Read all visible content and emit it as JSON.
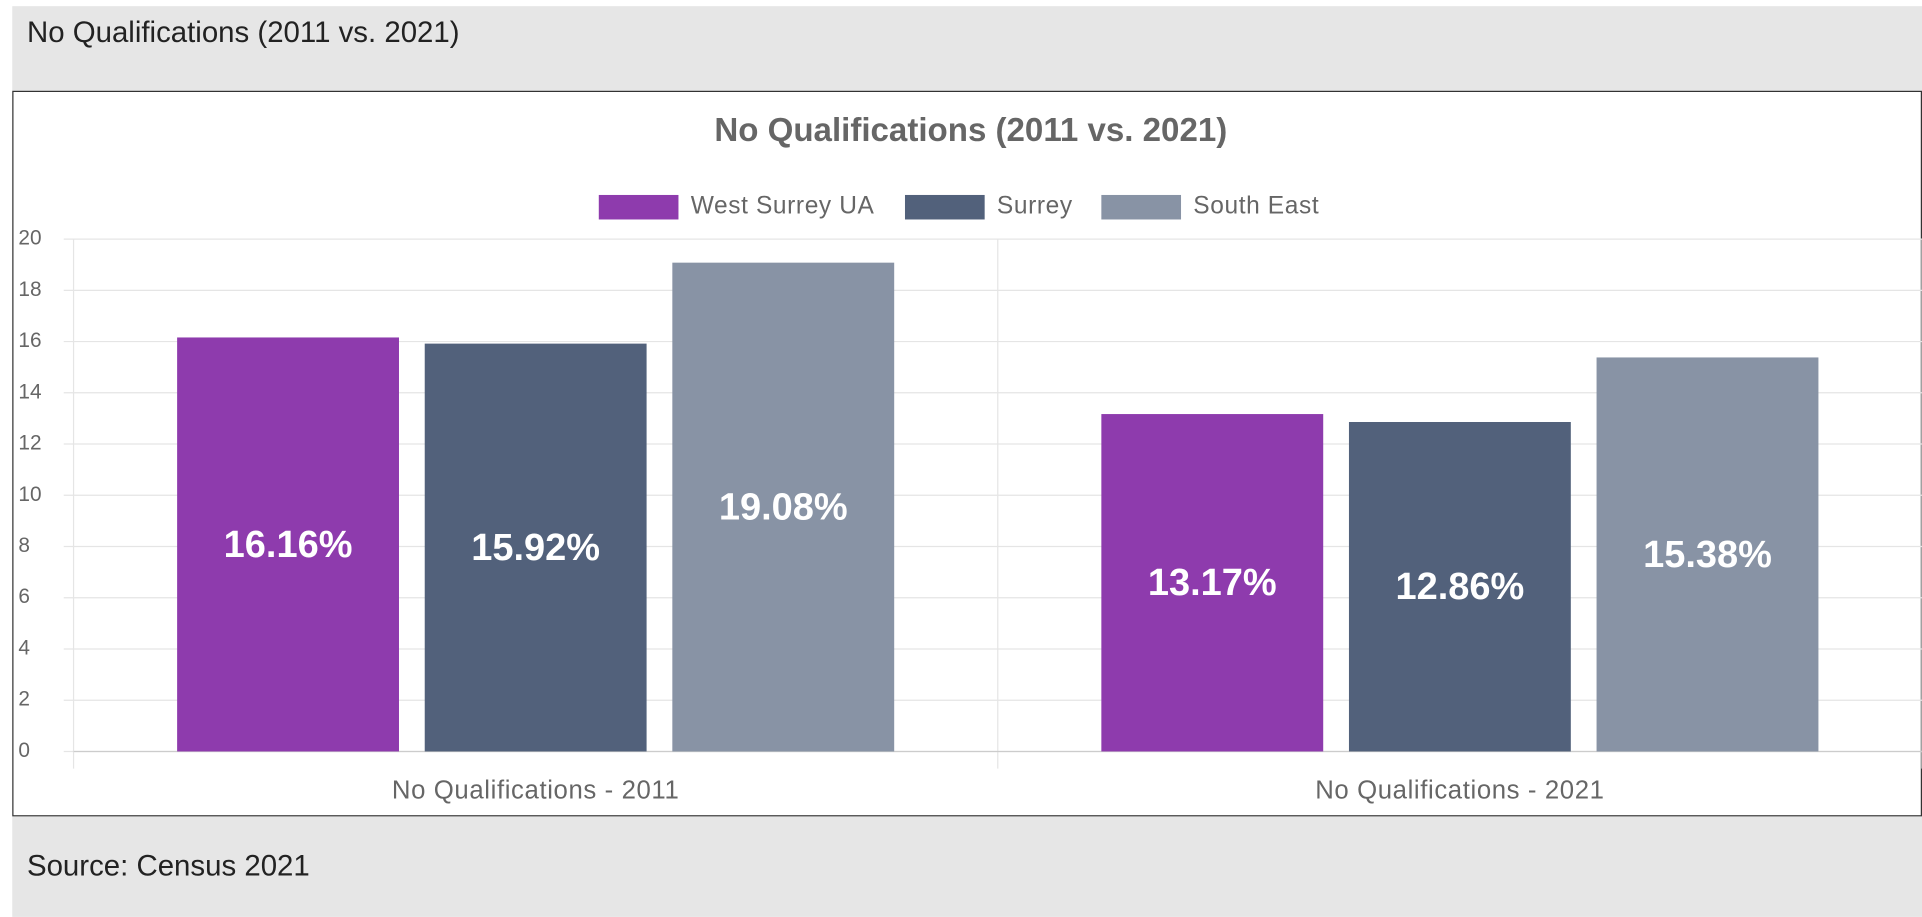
{
  "header": {
    "title": "No Qualifications (2011 vs. 2021)"
  },
  "footer": {
    "source": "Source: Census 2021"
  },
  "chart_data": {
    "type": "bar",
    "title": "No Qualifications (2011 vs. 2021)",
    "categories": [
      "No Qualifications - 2011",
      "No Qualifications - 2021"
    ],
    "series": [
      {
        "name": "West Surrey UA",
        "color": "#8e3bad",
        "values": [
          16.16,
          13.17
        ],
        "value_labels": [
          "16.16%",
          "13.17%"
        ]
      },
      {
        "name": "Surrey",
        "color": "#52617b",
        "values": [
          15.92,
          12.86
        ],
        "value_labels": [
          "15.92%",
          "12.86%"
        ]
      },
      {
        "name": "South East",
        "color": "#8893a5",
        "values": [
          19.08,
          15.38
        ],
        "value_labels": [
          "19.08%",
          "15.38%"
        ]
      }
    ],
    "ylim": [
      0,
      20
    ],
    "yticks": [
      0,
      2,
      4,
      6,
      8,
      10,
      12,
      14,
      16,
      18,
      20
    ],
    "grid": true,
    "legend": "top"
  }
}
